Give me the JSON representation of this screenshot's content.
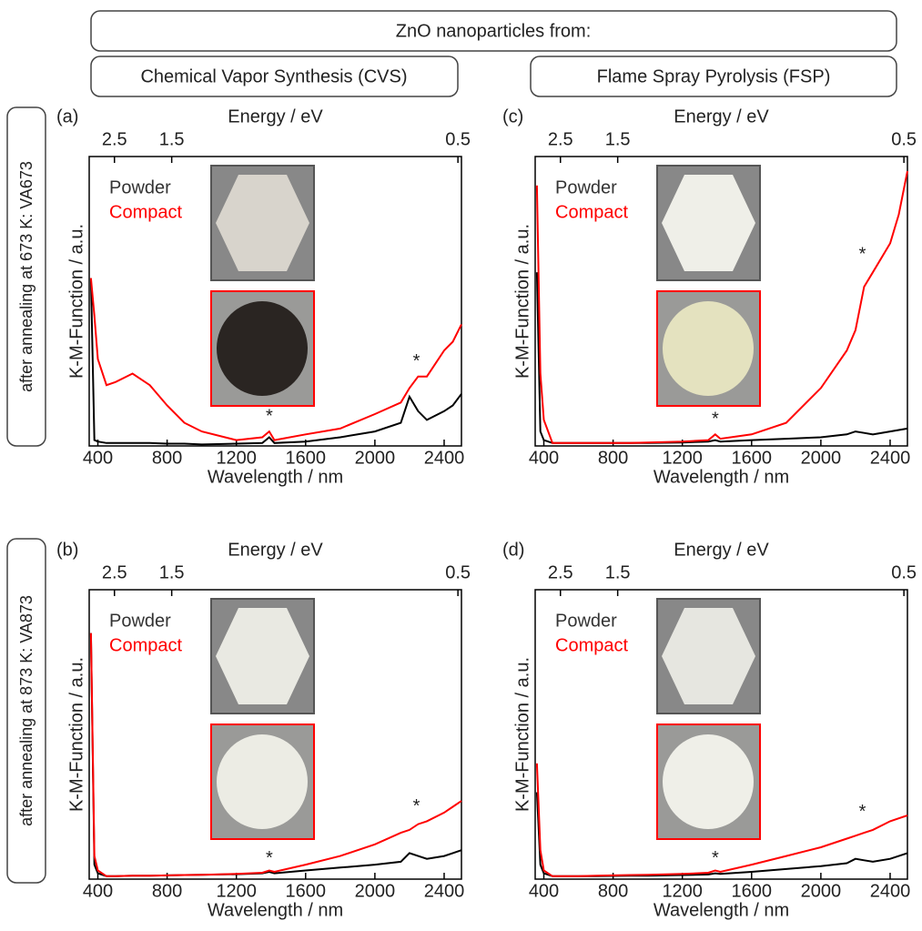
{
  "header": {
    "title": "ZnO nanoparticles from:",
    "columns": [
      "Chemical Vapor Synthesis (CVS)",
      "Flame Spray Pyrolysis (FSP)"
    ],
    "rows": [
      "after annealing at 673 K: VA673",
      "after annealing at 873 K: VA873"
    ]
  },
  "chart_data": [
    {
      "type": "line",
      "panel": "(a)",
      "xlabel": "Wavelength / nm",
      "ylabel": "K-M-Function / a.u.",
      "x2label": "Energy / eV",
      "xlim": [
        350,
        2500
      ],
      "xticks": [
        400,
        800,
        1200,
        1600,
        2000,
        2400
      ],
      "x2ticks": [
        2.5,
        1.5,
        0.5
      ],
      "ylim": [
        0,
        1
      ],
      "x": [
        360,
        380,
        400,
        450,
        500,
        600,
        700,
        800,
        900,
        1000,
        1200,
        1350,
        1390,
        1420,
        1600,
        1800,
        2000,
        2150,
        2200,
        2250,
        2300,
        2400,
        2450,
        2500
      ],
      "series": [
        {
          "name": "Powder",
          "color": "#000000",
          "legend_color": "#333333",
          "values": [
            0.58,
            0.02,
            0.015,
            0.01,
            0.01,
            0.01,
            0.01,
            0.008,
            0.008,
            0.005,
            0.008,
            0.01,
            0.03,
            0.01,
            0.015,
            0.03,
            0.05,
            0.08,
            0.17,
            0.12,
            0.09,
            0.12,
            0.14,
            0.18
          ]
        },
        {
          "name": "Compact",
          "color": "#ff0000",
          "legend_color": "#ff0000",
          "values": [
            0.58,
            0.45,
            0.3,
            0.21,
            0.22,
            0.25,
            0.21,
            0.14,
            0.08,
            0.05,
            0.02,
            0.03,
            0.05,
            0.02,
            0.04,
            0.06,
            0.11,
            0.15,
            0.2,
            0.24,
            0.24,
            0.33,
            0.36,
            0.42
          ]
        }
      ],
      "annotations": [
        {
          "text": "*",
          "x": 1390,
          "y": 0.1
        },
        {
          "text": "*",
          "x": 2240,
          "y": 0.29
        }
      ]
    },
    {
      "type": "line",
      "panel": "(c)",
      "xlabel": "Wavelength / nm",
      "ylabel": "K-M-Function / a.u.",
      "x2label": "Energy / eV",
      "xlim": [
        350,
        2500
      ],
      "xticks": [
        400,
        800,
        1200,
        1600,
        2000,
        2400
      ],
      "x2ticks": [
        2.5,
        1.5,
        0.5
      ],
      "ylim": [
        0,
        1
      ],
      "x": [
        360,
        380,
        400,
        450,
        500,
        600,
        700,
        800,
        900,
        1000,
        1200,
        1350,
        1390,
        1420,
        1600,
        1800,
        2000,
        2150,
        2200,
        2250,
        2300,
        2400,
        2450,
        2500
      ],
      "series": [
        {
          "name": "Powder",
          "color": "#000000",
          "legend_color": "#333333",
          "values": [
            0.6,
            0.05,
            0.02,
            0.01,
            0.01,
            0.01,
            0.01,
            0.01,
            0.01,
            0.01,
            0.012,
            0.015,
            0.02,
            0.015,
            0.02,
            0.025,
            0.03,
            0.04,
            0.05,
            0.045,
            0.04,
            0.05,
            0.055,
            0.06
          ]
        },
        {
          "name": "Compact",
          "color": "#ff0000",
          "legend_color": "#ff0000",
          "values": [
            0.9,
            0.25,
            0.09,
            0.01,
            0.01,
            0.01,
            0.01,
            0.01,
            0.01,
            0.012,
            0.015,
            0.02,
            0.04,
            0.025,
            0.04,
            0.08,
            0.2,
            0.33,
            0.4,
            0.55,
            0.6,
            0.7,
            0.8,
            0.95
          ]
        }
      ],
      "annotations": [
        {
          "text": "*",
          "x": 1390,
          "y": 0.09
        },
        {
          "text": "*",
          "x": 2240,
          "y": 0.66
        }
      ]
    },
    {
      "type": "line",
      "panel": "(b)",
      "xlabel": "Wavelength / nm",
      "ylabel": "K-M-Function / a.u.",
      "x2label": "Energy / eV",
      "xlim": [
        350,
        2500
      ],
      "xticks": [
        400,
        800,
        1200,
        1600,
        2000,
        2400
      ],
      "x2ticks": [
        2.5,
        1.5,
        0.5
      ],
      "ylim": [
        0,
        1
      ],
      "x": [
        360,
        380,
        400,
        450,
        500,
        600,
        700,
        800,
        900,
        1000,
        1200,
        1350,
        1390,
        1420,
        1600,
        1800,
        2000,
        2150,
        2200,
        2250,
        2300,
        2400,
        2450,
        2500
      ],
      "series": [
        {
          "name": "Powder",
          "color": "#000000",
          "legend_color": "#333333",
          "values": [
            0.85,
            0.05,
            0.02,
            0.01,
            0.01,
            0.012,
            0.012,
            0.013,
            0.014,
            0.015,
            0.017,
            0.02,
            0.025,
            0.02,
            0.03,
            0.04,
            0.05,
            0.06,
            0.09,
            0.08,
            0.07,
            0.08,
            0.09,
            0.1
          ]
        },
        {
          "name": "Compact",
          "color": "#ff0000",
          "legend_color": "#ff0000",
          "values": [
            0.85,
            0.08,
            0.03,
            0.01,
            0.01,
            0.012,
            0.012,
            0.013,
            0.014,
            0.015,
            0.018,
            0.022,
            0.03,
            0.025,
            0.05,
            0.08,
            0.12,
            0.16,
            0.17,
            0.19,
            0.2,
            0.23,
            0.25,
            0.27
          ]
        }
      ],
      "annotations": [
        {
          "text": "*",
          "x": 1390,
          "y": 0.07
        },
        {
          "text": "*",
          "x": 2240,
          "y": 0.25
        }
      ]
    },
    {
      "type": "line",
      "panel": "(d)",
      "xlabel": "Wavelength / nm",
      "ylabel": "K-M-Function / a.u.",
      "x2label": "Energy / eV",
      "xlim": [
        350,
        2500
      ],
      "xticks": [
        400,
        800,
        1200,
        1600,
        2000,
        2400
      ],
      "x2ticks": [
        2.5,
        1.5,
        0.5
      ],
      "ylim": [
        0,
        1
      ],
      "x": [
        360,
        380,
        400,
        450,
        500,
        600,
        700,
        800,
        900,
        1000,
        1200,
        1350,
        1390,
        1420,
        1600,
        1800,
        2000,
        2150,
        2200,
        2250,
        2300,
        2400,
        2450,
        2500
      ],
      "series": [
        {
          "name": "Powder",
          "color": "#000000",
          "legend_color": "#333333",
          "values": [
            0.3,
            0.05,
            0.02,
            0.01,
            0.01,
            0.01,
            0.01,
            0.011,
            0.012,
            0.012,
            0.014,
            0.016,
            0.02,
            0.018,
            0.025,
            0.035,
            0.045,
            0.055,
            0.07,
            0.065,
            0.06,
            0.07,
            0.08,
            0.09
          ]
        },
        {
          "name": "Compact",
          "color": "#ff0000",
          "legend_color": "#ff0000",
          "values": [
            0.4,
            0.1,
            0.03,
            0.01,
            0.01,
            0.01,
            0.012,
            0.013,
            0.014,
            0.015,
            0.018,
            0.022,
            0.03,
            0.025,
            0.05,
            0.08,
            0.11,
            0.14,
            0.15,
            0.16,
            0.17,
            0.2,
            0.21,
            0.22
          ]
        }
      ],
      "annotations": [
        {
          "text": "*",
          "x": 1390,
          "y": 0.07
        },
        {
          "text": "*",
          "x": 2240,
          "y": 0.23
        }
      ]
    }
  ]
}
